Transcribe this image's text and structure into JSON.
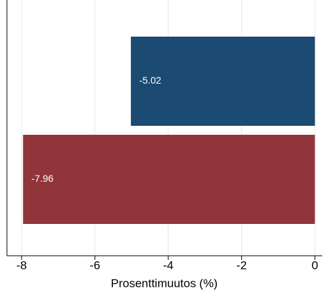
{
  "chart_data": {
    "type": "barh",
    "categories": [
      null,
      null
    ],
    "values": [
      -5.02,
      -7.96
    ],
    "colors": [
      "#1b4a72",
      "#91353b"
    ],
    "xlabel": "Prosenttimuutos (%)",
    "xlim": [
      -8.4,
      0.2
    ],
    "xticks": [
      -8,
      -6,
      -4,
      -2,
      0
    ],
    "grid": true
  }
}
